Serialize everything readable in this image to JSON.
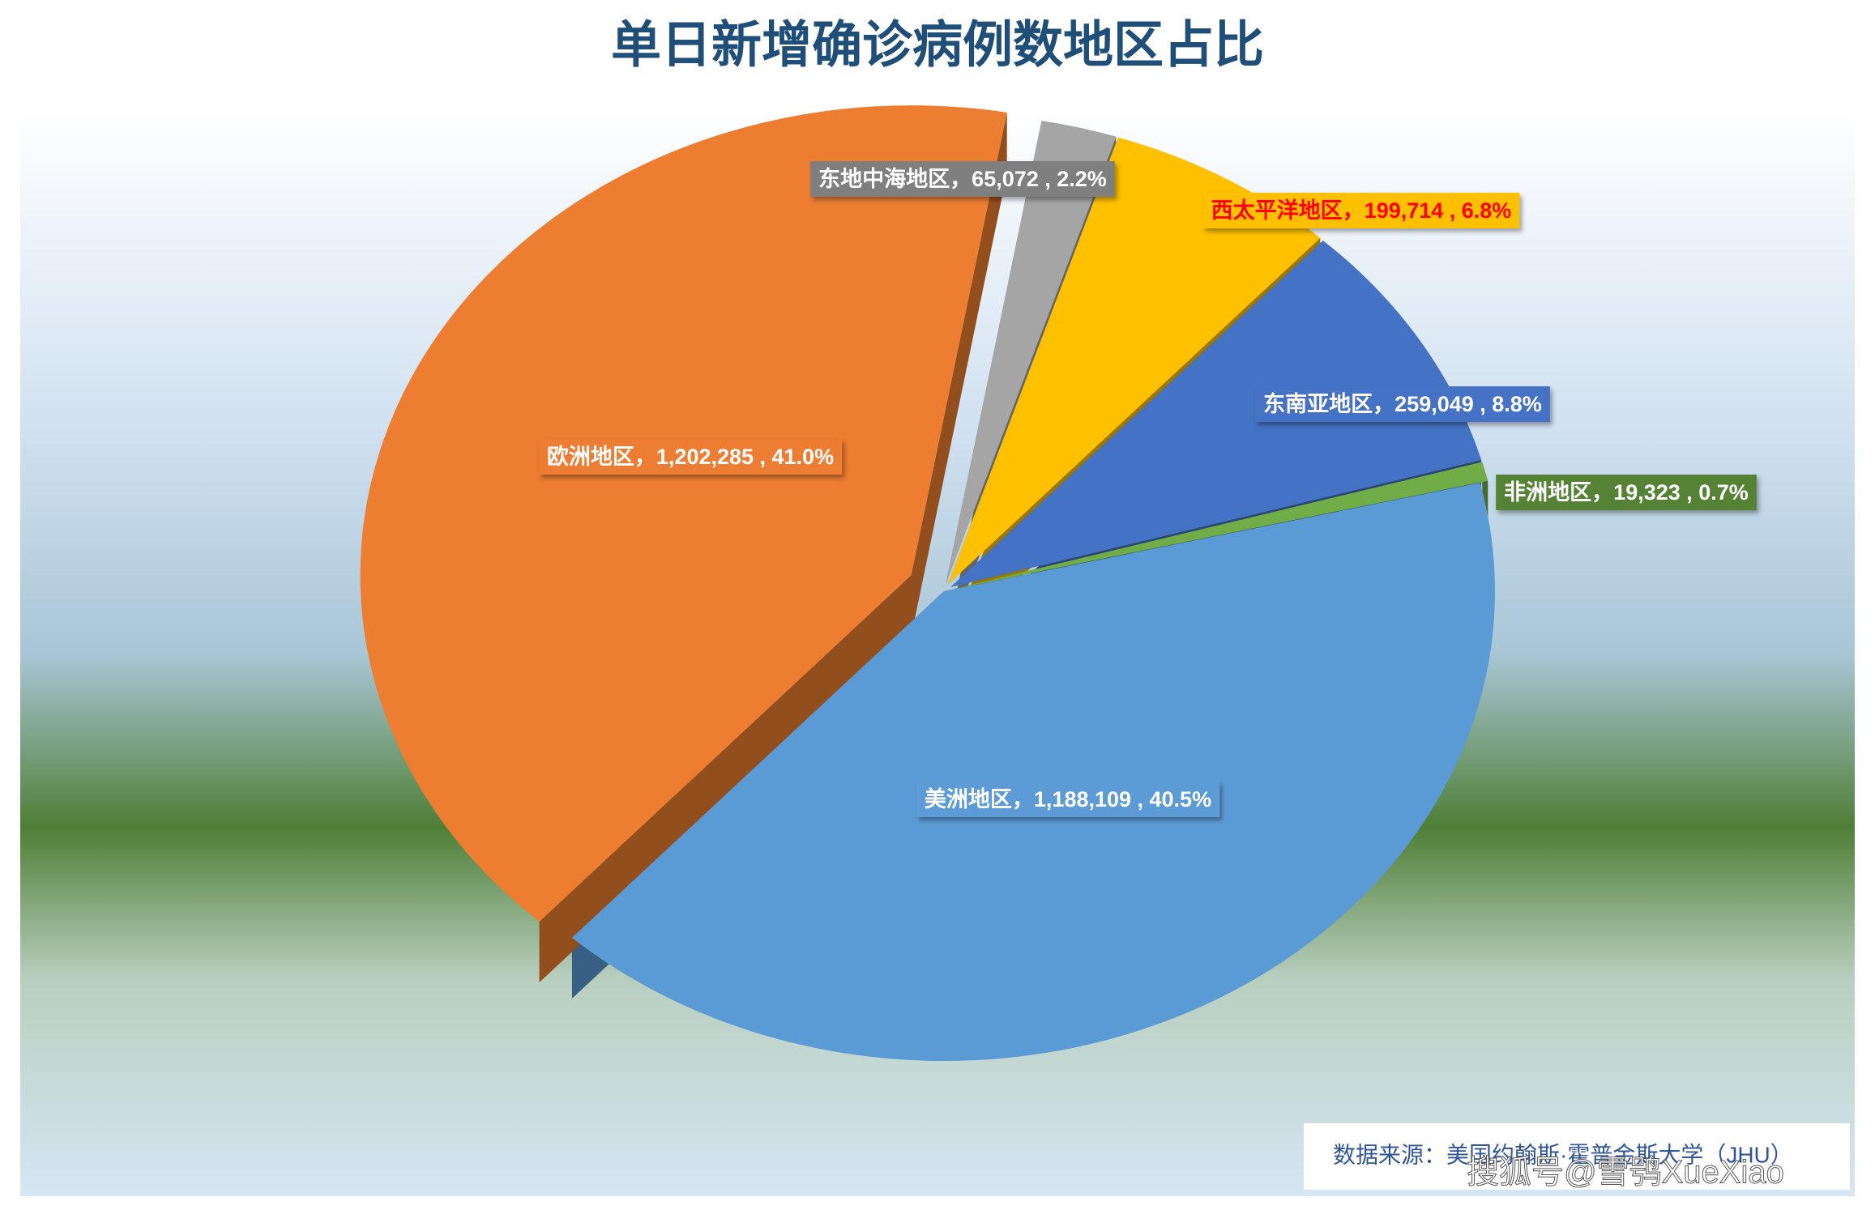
{
  "chart_data": {
    "type": "pie",
    "title": "单日新增确诊病例数地区占比",
    "categories": [
      "东地中海地区",
      "西太平洋地区",
      "东南亚地区",
      "非洲地区",
      "美洲地区",
      "欧洲地区"
    ],
    "values": [
      65072,
      199714,
      259049,
      19323,
      1188109,
      1202285
    ],
    "value_labels": [
      "东地中海地区，65,072 , 2.2%",
      "西太平洋地区，199,714 , 6.8%",
      "东南亚地区，259,049 , 8.8%",
      "非洲地区，19,323 , 0.7%",
      "美洲地区，1,188,109 , 40.5%",
      "欧洲地区，1,202,285 , 41.0%"
    ],
    "colors": [
      "#a5a5a5",
      "#ffc000",
      "#4472c4",
      "#70ad47",
      "#5b9bd5",
      "#ed7d31"
    ],
    "source": "数据来源：美国约翰斯·霍普金斯大学（JHU）",
    "watermark": "搜狐号@雪鸮XueXiao"
  }
}
